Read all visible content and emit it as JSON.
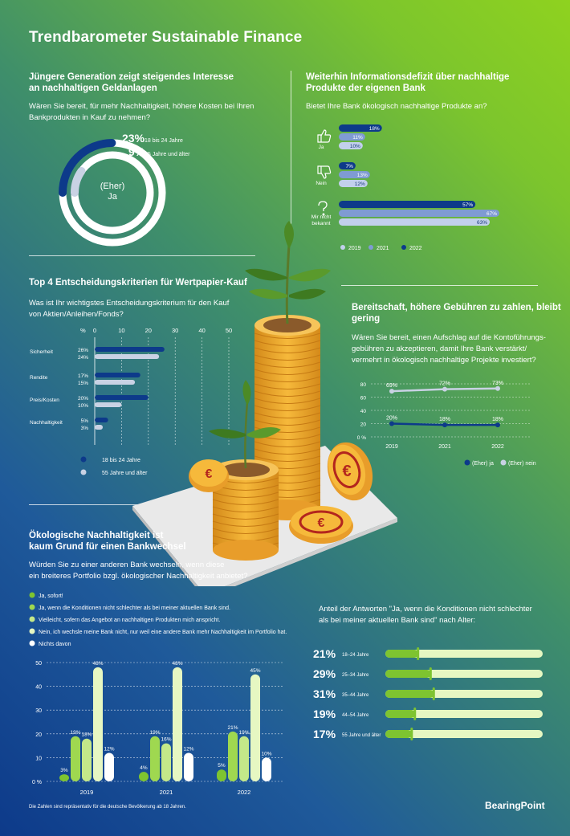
{
  "title": "Trendbarometer Sustainable Finance",
  "section1": {
    "heading_l1": "Jüngere Generation zeigt steigendes Interesse",
    "heading_l2": "an nachhaltigen Geldanlagen",
    "question_l1": "Wären Sie bereit, für mehr Nachhaltigkeit, höhere Kosten bei Ihren",
    "question_l2": "Bankprodukten in Kauf zu nehmen?",
    "center_l1": "(Eher)",
    "center_l2": "Ja",
    "items": [
      {
        "pct": "23%",
        "label": "18 bis 24 Jahre"
      },
      {
        "pct": "9%",
        "label": "55 Jahre und älter"
      }
    ]
  },
  "section2": {
    "heading_l1": "Weiterhin Informationsdefizit über nachhaltige",
    "heading_l2": "Produkte der eigenen Bank",
    "question": "Bietet Ihre Bank ökologisch nachhaltige Produkte an?",
    "groups": [
      {
        "label_l1": "Ja",
        "label_l2": "",
        "icon": "thumbs-up-icon"
      },
      {
        "label_l1": "Nein",
        "label_l2": "",
        "icon": "thumbs-down-icon"
      },
      {
        "label_l1": "Mir nicht",
        "label_l2": "bekannt",
        "icon": "question-mark-icon"
      }
    ],
    "legend": [
      "2019",
      "2021",
      "2022"
    ]
  },
  "section3": {
    "heading": "Top 4 Entscheidungskriterien für Wertpapier-Kauf",
    "question_l1": "Was ist Ihr wichtigstes Entscheidungskriterium für den Kauf",
    "question_l2": "von Aktien/Anleihen/Fonds?",
    "axis_unit": "%",
    "legend": [
      "18 bis 24 Jahre",
      "55 Jahre und älter"
    ]
  },
  "section4": {
    "heading_l1": "Bereitschaft, höhere Gebühren zu zahlen, bleibt",
    "heading_l2": "gering",
    "question_l1": "Wären Sie bereit, einen Aufschlag auf die Kontoführungs-",
    "question_l2": "gebühren zu akzeptieren, damit Ihre Bank verstärkt/",
    "question_l3": "vermehrt in ökologisch nachhaltige Projekte investiert?",
    "legend": [
      "(Eher) ja",
      "(Eher) nein"
    ]
  },
  "section5": {
    "heading_l1": "Ökologische Nachhaltigkeit ist",
    "heading_l2": "kaum Grund für einen Bankwechsel",
    "question_l1": "Würden Sie zu einer anderen Bank wechseln, wenn diese",
    "question_l2": "ein breiteres Portfolio bzgl. ökologischer Nachhaltigkeit anbietet?",
    "options": [
      "Ja, sofort!",
      "Ja, wenn die Konditionen nicht schlechter als bei meiner aktuellen Bank sind.",
      "Vielleicht, sofern das Angebot an nachhaltigen Produkten mich anspricht.",
      "Nein, ich wechsle meine Bank nicht, nur weil eine andere Bank mehr Nachhaltigkeit im Portfolio hat.",
      "Nichts davon"
    ]
  },
  "section6": {
    "heading_l1": "Anteil der Antworten \"Ja, wenn die Konditionen nicht schlechter",
    "heading_l2": "als bei meiner aktuellen Bank sind\" nach Alter:"
  },
  "footnote": "Die Zahlen sind repräsentativ für die deutsche Bevölkerung ab 18 Jahren.",
  "brand": "BearingPoint",
  "colors": {
    "navy": "#0d3a8a",
    "blue_mid": "#7f9bd3",
    "blue_light": "#c2d0ec",
    "grey_light": "#c9d2e4",
    "green_dark": "#7ec430",
    "green_mid": "#b6e36e",
    "green_light": "#e6f7c2",
    "white": "#ffffff"
  },
  "chart_data": [
    {
      "id": "ring",
      "type": "radial-bar",
      "categories": [
        "18 bis 24 Jahre",
        "55 Jahre und älter"
      ],
      "values": [
        23,
        9
      ]
    },
    {
      "id": "bank_products",
      "type": "bar",
      "orientation": "horizontal",
      "categories": [
        "Ja",
        "Nein",
        "Mir nicht bekannt"
      ],
      "series": [
        {
          "name": "2022",
          "values": [
            18,
            7,
            57
          ],
          "labels": [
            "18%",
            "7%",
            "57%"
          ]
        },
        {
          "name": "2021",
          "values": [
            11,
            13,
            67
          ],
          "labels": [
            "11%",
            "13%",
            "67%"
          ]
        },
        {
          "name": "2019",
          "values": [
            10,
            12,
            63
          ],
          "labels": [
            "10%",
            "12%",
            "63%"
          ]
        }
      ]
    },
    {
      "id": "criteria",
      "type": "bar",
      "orientation": "horizontal",
      "xlim": [
        0,
        50
      ],
      "xticks": [
        "0",
        "10",
        "20",
        "30",
        "40",
        "50"
      ],
      "categories": [
        "Sicherheit",
        "Rendite",
        "Preis/Kosten",
        "Nachhaltigkeit"
      ],
      "series": [
        {
          "name": "18 bis 24 Jahre",
          "values": [
            26,
            17,
            20,
            5
          ],
          "labels": [
            "26%",
            "17%",
            "20%",
            "5%"
          ]
        },
        {
          "name": "55 Jahre und älter",
          "values": [
            24,
            15,
            10,
            3
          ],
          "labels": [
            "24%",
            "15%",
            "10%",
            "3%"
          ]
        }
      ]
    },
    {
      "id": "fees",
      "type": "line",
      "x": [
        "2019",
        "2021",
        "2022"
      ],
      "ylim": [
        0,
        80
      ],
      "yticks": [
        "0 %",
        "20",
        "40",
        "60",
        "80"
      ],
      "series": [
        {
          "name": "(Eher) ja",
          "values": [
            20,
            18,
            18
          ],
          "labels": [
            "20%",
            "18%",
            "18%"
          ]
        },
        {
          "name": "(Eher) nein",
          "values": [
            69,
            72,
            73
          ],
          "labels": [
            "69%",
            "72%",
            "73%"
          ]
        }
      ]
    },
    {
      "id": "switch",
      "type": "bar",
      "categories": [
        "2019",
        "2021",
        "2022"
      ],
      "ylim": [
        0,
        50
      ],
      "yticks": [
        "0 %",
        "10",
        "20",
        "30",
        "40",
        "50"
      ],
      "series": [
        {
          "name": "Ja, sofort!",
          "values": [
            3,
            4,
            5
          ],
          "labels": [
            "3%",
            "4%",
            "5%"
          ]
        },
        {
          "name": "Ja, wenn die Konditionen nicht schlechter als bei meiner aktuellen Bank sind.",
          "values": [
            19,
            19,
            21
          ],
          "labels": [
            "19%",
            "19%",
            "21%"
          ]
        },
        {
          "name": "Vielleicht, sofern das Angebot an nachhaltigen Produkten mich anspricht.",
          "values": [
            18,
            16,
            19
          ],
          "labels": [
            "18%",
            "16%",
            "19%"
          ]
        },
        {
          "name": "Nein, ich wechsle meine Bank nicht, nur weil eine andere Bank mehr Nachhaltigkeit im Portfolio hat.",
          "values": [
            48,
            48,
            45
          ],
          "labels": [
            "48%",
            "48%",
            "45%"
          ]
        },
        {
          "name": "Nichts davon",
          "values": [
            12,
            12,
            10
          ],
          "labels": [
            "12%",
            "12%",
            "10%"
          ]
        }
      ]
    },
    {
      "id": "age",
      "type": "bar",
      "orientation": "horizontal",
      "categories": [
        "18–24 Jahre",
        "25–34 Jahre",
        "35–44 Jahre",
        "44–54 Jahre",
        "55 Jahre und älter"
      ],
      "values": [
        21,
        29,
        31,
        19,
        17
      ],
      "labels": [
        "21%",
        "29%",
        "31%",
        "19%",
        "17%"
      ]
    }
  ]
}
